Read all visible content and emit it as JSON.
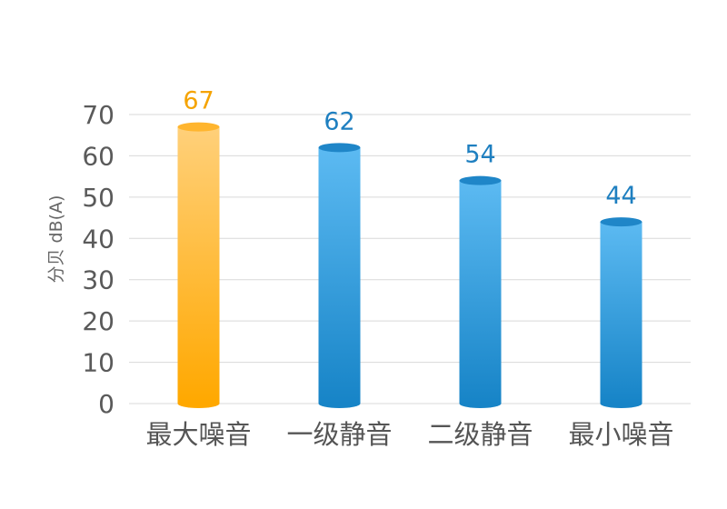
{
  "chart_data": {
    "type": "bar",
    "title": "",
    "xlabel": "",
    "ylabel": "分贝 dB(A)",
    "categories": [
      "最大噪音",
      "一级静音",
      "二级静音",
      "最小噪音"
    ],
    "values": [
      67,
      62,
      54,
      44
    ],
    "value_labels": [
      "67",
      "62",
      "54",
      "44"
    ],
    "ylim": [
      0,
      70
    ],
    "yticks": [
      0,
      10,
      20,
      30,
      40,
      50,
      60,
      70
    ],
    "ytick_labels": [
      "0",
      "10",
      "20",
      "30",
      "40",
      "50",
      "60",
      "70"
    ],
    "grid": true,
    "legend": "none",
    "bar_style": "cylinder",
    "colors": {
      "highlight_top": "#ffd07a",
      "highlight_bottom": "#ffa800",
      "highlight_cap": "#ffb52e",
      "highlight_label": "#f5a300",
      "normal_top": "#5cbaf2",
      "normal_bottom": "#1784c7",
      "normal_cap": "#1f86c8",
      "normal_label": "#1e7fc0",
      "grid": "#d9d9d9"
    },
    "highlight_index": 0
  }
}
